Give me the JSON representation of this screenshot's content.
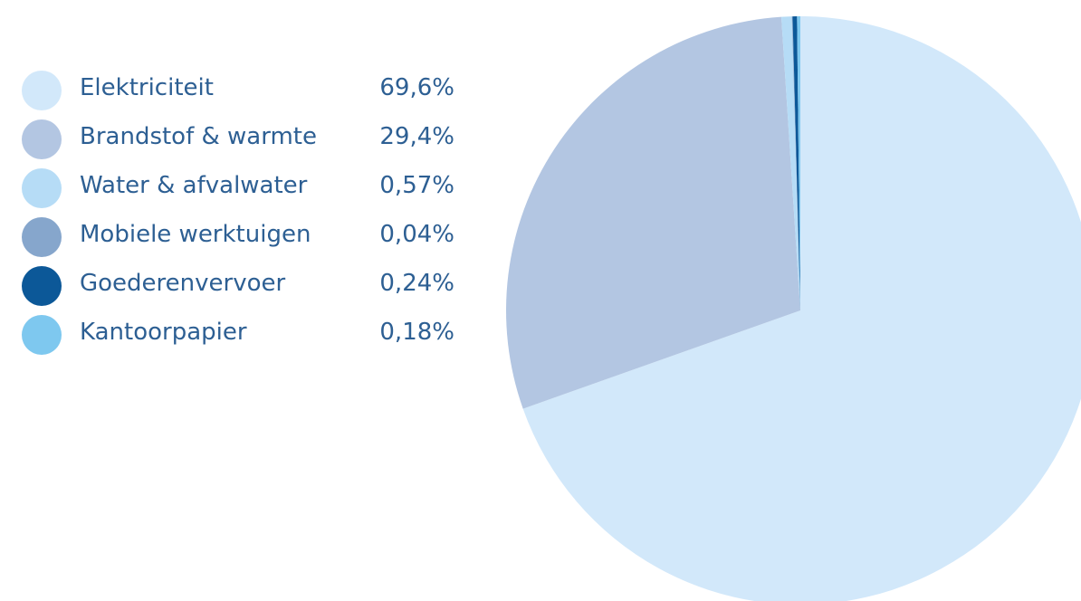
{
  "chart_data": {
    "type": "pie",
    "categories": [
      "Elektriciteit",
      "Brandstof & warmte",
      "Water & afvalwater",
      "Mobiele werktuigen",
      "Goederenvervoer",
      "Kantoorpapier"
    ],
    "values": [
      69.6,
      29.4,
      0.57,
      0.04,
      0.24,
      0.18
    ],
    "value_labels": [
      "69,6%",
      "29,4%",
      "0,57%",
      "0,04%",
      "0,24%",
      "0,18%"
    ],
    "colors": [
      "#d2e8fa",
      "#b3c6e2",
      "#b6dcf6",
      "#86a6cc",
      "#0c5898",
      "#7ec8ef"
    ],
    "legend_position": "left",
    "start_direction": "top",
    "direction": "clockwise"
  }
}
